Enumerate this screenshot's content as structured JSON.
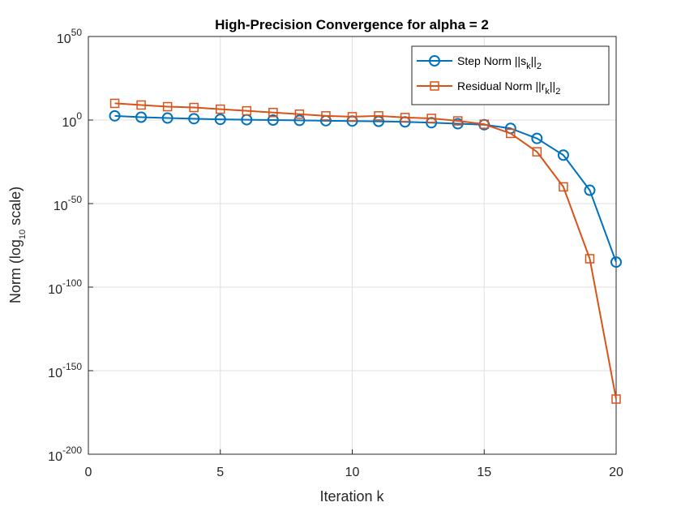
{
  "chart_data": {
    "type": "line",
    "title": "High-Precision Convergence for alpha = 2",
    "xlabel": "Iteration k",
    "ylabel": {
      "prefix": "Norm (log",
      "sub": "10",
      "suffix": " scale)"
    },
    "xlim": [
      0,
      20
    ],
    "ylim_log10": [
      -200,
      50
    ],
    "grid": true,
    "legend_position": "top-right",
    "x_ticks": [
      "0",
      "5",
      "10",
      "15",
      "20"
    ],
    "y_ticks": [
      {
        "base": "10",
        "exp": "50"
      },
      {
        "base": "10",
        "exp": "0"
      },
      {
        "base": "10",
        "exp": "-50"
      },
      {
        "base": "10",
        "exp": "-100"
      },
      {
        "base": "10",
        "exp": "-150"
      },
      {
        "base": "10",
        "exp": "-200"
      }
    ],
    "x": [
      1,
      2,
      3,
      4,
      5,
      6,
      7,
      8,
      9,
      10,
      11,
      12,
      13,
      14,
      15,
      16,
      17,
      18,
      19,
      20
    ],
    "series": [
      {
        "name": "Step Norm ||s_k||_2",
        "legend": {
          "prefix": "Step Norm ||s",
          "sub": "k",
          "mid": "||",
          "sub2": "2"
        },
        "marker": "circle",
        "color": "#0072BD",
        "log10_values": [
          2.5,
          1.7,
          1.2,
          0.8,
          0.4,
          0.2,
          0.0,
          -0.2,
          -0.4,
          -0.6,
          -0.8,
          -1.1,
          -1.6,
          -2.2,
          -2.8,
          -5,
          -11,
          -21,
          -42,
          -85
        ]
      },
      {
        "name": "Residual Norm ||r_k||_2",
        "legend": {
          "prefix": "Residual Norm ||r",
          "sub": "k",
          "mid": "||",
          "sub2": "2"
        },
        "marker": "square",
        "color": "#D95319",
        "log10_values": [
          10,
          9,
          8,
          7.5,
          6.5,
          5.5,
          4.5,
          3.5,
          2.5,
          2,
          2.5,
          1.5,
          1,
          -0.5,
          -2.5,
          -8,
          -19,
          -40,
          -83,
          -167
        ]
      }
    ]
  }
}
